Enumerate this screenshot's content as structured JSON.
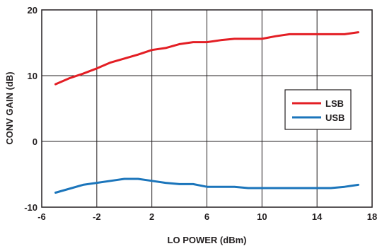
{
  "chart_data": {
    "type": "line",
    "title": "",
    "xlabel": "LO POWER (dBm)",
    "ylabel": "CONV GAIN (dB)",
    "xlim": [
      -6,
      18
    ],
    "ylim": [
      -10,
      20
    ],
    "xticks": [
      -6,
      -2,
      2,
      6,
      10,
      14,
      18
    ],
    "yticks": [
      -10,
      0,
      10,
      20
    ],
    "grid": true,
    "legend_position": "right",
    "series": [
      {
        "name": "LSB",
        "color": "#e31e24",
        "x": [
          -5,
          -4,
          -3,
          -2,
          -1,
          0,
          1,
          2,
          3,
          4,
          5,
          6,
          7,
          8,
          9,
          10,
          11,
          12,
          13,
          14,
          15,
          16,
          17
        ],
        "y": [
          8.7,
          9.6,
          10.3,
          11.1,
          12.0,
          12.6,
          13.2,
          13.9,
          14.2,
          14.8,
          15.1,
          15.1,
          15.4,
          15.6,
          15.6,
          15.6,
          16.0,
          16.3,
          16.3,
          16.3,
          16.3,
          16.3,
          16.6
        ]
      },
      {
        "name": "USB",
        "color": "#1b75bb",
        "x": [
          -5,
          -4,
          -3,
          -2,
          -1,
          0,
          1,
          2,
          3,
          4,
          5,
          6,
          7,
          8,
          9,
          10,
          11,
          12,
          13,
          14,
          15,
          16,
          17
        ],
        "y": [
          -7.8,
          -7.2,
          -6.6,
          -6.3,
          -6.0,
          -5.7,
          -5.7,
          -6.0,
          -6.3,
          -6.5,
          -6.5,
          -6.9,
          -6.9,
          -6.9,
          -7.1,
          -7.1,
          -7.1,
          -7.1,
          -7.1,
          -7.1,
          -7.1,
          -6.9,
          -6.6
        ]
      }
    ]
  }
}
